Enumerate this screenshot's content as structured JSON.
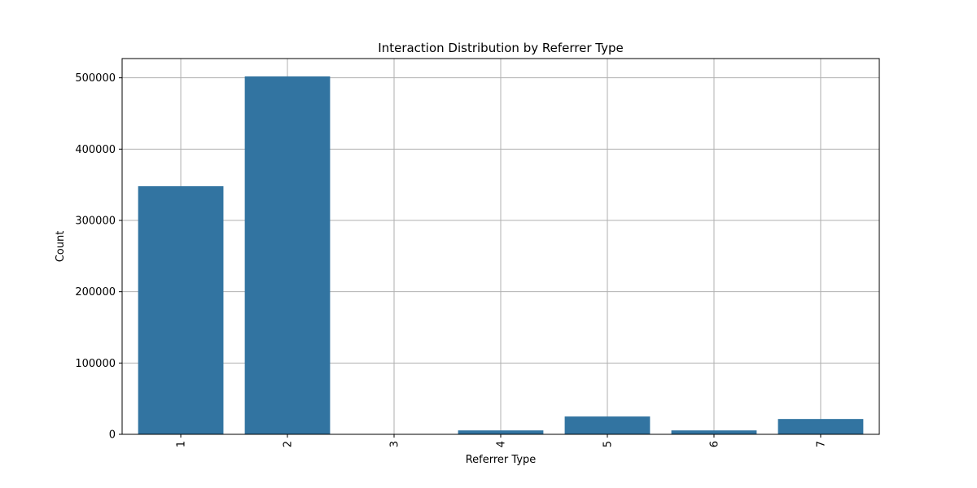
{
  "chart_data": {
    "type": "bar",
    "title": "Interaction Distribution by Referrer Type",
    "xlabel": "Referrer Type",
    "ylabel": "Count",
    "categories": [
      "1",
      "2",
      "3",
      "4",
      "5",
      "6",
      "7"
    ],
    "values": [
      348000,
      502000,
      100,
      5500,
      25000,
      5500,
      21500
    ],
    "ylim": [
      0,
      527000
    ],
    "yticks": [
      0,
      100000,
      200000,
      300000,
      400000,
      500000
    ],
    "ytick_labels": [
      "0",
      "100000",
      "200000",
      "300000",
      "400000",
      "500000"
    ],
    "grid": true,
    "x_tick_rotation": "vertical",
    "bar_color": "#3274a1"
  }
}
